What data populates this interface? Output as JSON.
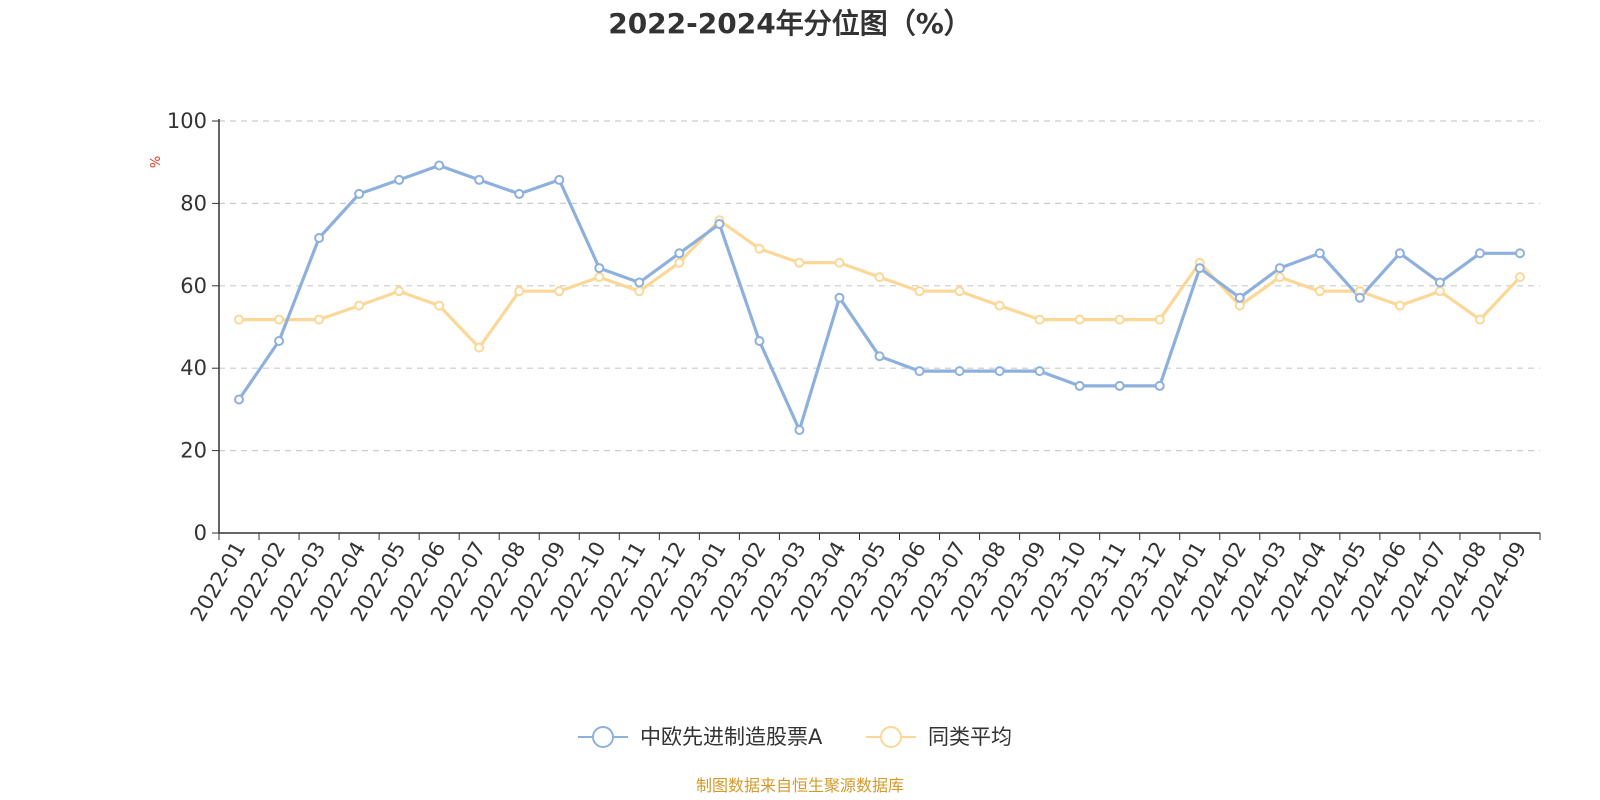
{
  "chart_data": {
    "type": "line",
    "title": "2022-2024年分位图（%）",
    "xlabel": "",
    "ylabel": "%",
    "ylim": [
      0,
      100
    ],
    "yticks": [
      0,
      20,
      40,
      60,
      80,
      100
    ],
    "grid": "horizontal dashed",
    "legend_position": "bottom-center",
    "categories": [
      "2022-01",
      "2022-02",
      "2022-03",
      "2022-04",
      "2022-05",
      "2022-06",
      "2022-07",
      "2022-08",
      "2022-09",
      "2022-10",
      "2022-11",
      "2022-12",
      "2023-01",
      "2023-02",
      "2023-03",
      "2023-04",
      "2023-05",
      "2023-06",
      "2023-07",
      "2023-08",
      "2023-09",
      "2023-10",
      "2023-11",
      "2023-12",
      "2024-01",
      "2024-02",
      "2024-03",
      "2024-04",
      "2024-05",
      "2024-06",
      "2024-07",
      "2024-08",
      "2024-09"
    ],
    "series": [
      {
        "name": "中欧先进制造股票A",
        "color": "#8eb0dc",
        "values": [
          32.4,
          46.6,
          71.6,
          82.3,
          85.7,
          89.2,
          85.7,
          82.3,
          85.7,
          64.3,
          60.8,
          67.9,
          75.0,
          46.6,
          25.0,
          57.1,
          42.9,
          39.3,
          39.3,
          39.3,
          39.3,
          35.7,
          35.7,
          35.7,
          64.3,
          57.1,
          64.3,
          67.9,
          57.1,
          67.9,
          60.8,
          67.9,
          67.9
        ]
      },
      {
        "name": "同类平均",
        "color": "#fbd897",
        "values": [
          51.8,
          51.8,
          51.8,
          55.2,
          58.7,
          55.2,
          45.0,
          58.7,
          58.7,
          62.1,
          58.7,
          65.6,
          75.9,
          69.0,
          65.6,
          65.6,
          62.1,
          58.7,
          58.7,
          55.2,
          51.8,
          51.8,
          51.8,
          51.8,
          65.6,
          55.2,
          62.1,
          58.7,
          58.7,
          55.2,
          58.7,
          51.8,
          62.1
        ]
      }
    ],
    "source": "制图数据来自恒生聚源数据库",
    "colors": {
      "axis": "#333333",
      "grid": "#cccccc",
      "ylabel": "#e8361e",
      "source": "#d49a2a"
    }
  }
}
